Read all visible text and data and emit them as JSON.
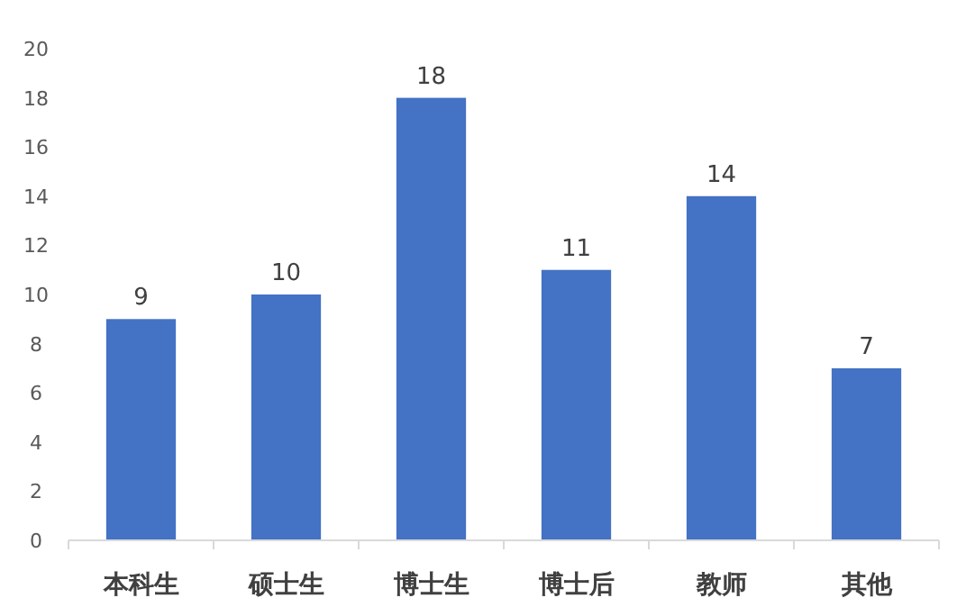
{
  "chart_data": {
    "type": "bar",
    "categories": [
      "本科生",
      "硕士生",
      "博士生",
      "博士后",
      "教师",
      "其他"
    ],
    "values": [
      9,
      10,
      18,
      11,
      14,
      7
    ],
    "color": "#4472c4",
    "ylim": [
      0,
      20
    ],
    "yticks": [
      0,
      2,
      4,
      6,
      8,
      10,
      12,
      14,
      16,
      18,
      20
    ],
    "data_labels": true,
    "grid": false
  }
}
